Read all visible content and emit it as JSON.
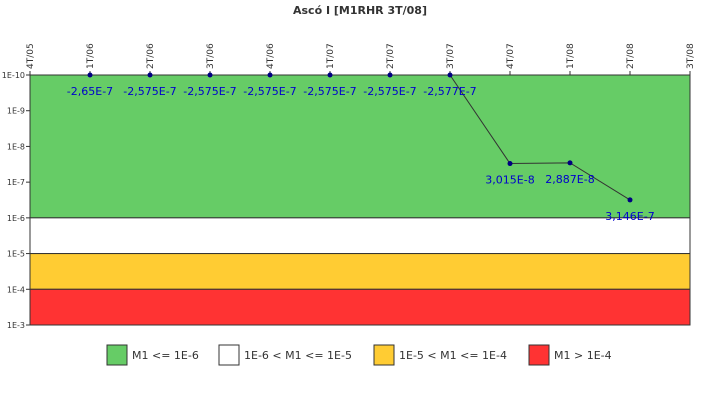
{
  "chart_data": {
    "type": "line",
    "title": "Ascó I [M1RHR 3T/08]",
    "categories": [
      "4T/05",
      "1T/06",
      "2T/06",
      "3T/06",
      "4T/06",
      "1T/07",
      "2T/07",
      "3T/07",
      "4T/07",
      "1T/08",
      "2T/08",
      "3T/08"
    ],
    "values": [
      null,
      -2.65e-07,
      -2.575e-07,
      -2.575e-07,
      -2.575e-07,
      -2.575e-07,
      -2.575e-07,
      -2.577e-07,
      3.015e-08,
      2.887e-08,
      3.146e-07,
      null
    ],
    "value_labels": [
      null,
      "-2,65E-7",
      "-2,575E-7",
      "-2,575E-7",
      "-2,575E-7",
      "-2,575E-7",
      "-2,575E-7",
      "-2,577E-7",
      "3,015E-8",
      "2,887E-8",
      "3,146E-7",
      null
    ],
    "color": "#333333",
    "marker_color": "#000080",
    "label_color": "#0000cc",
    "log_scale": true,
    "y_inverted": true,
    "ylim": [
      1e-10,
      0.001
    ],
    "yticks": [
      {
        "value": 1e-10,
        "label": "1E-10"
      },
      {
        "value": 1e-09,
        "label": "1E-9"
      },
      {
        "value": 1e-08,
        "label": "1E-8"
      },
      {
        "value": 1e-07,
        "label": "1E-7"
      },
      {
        "value": 1e-06,
        "label": "1E-6"
      },
      {
        "value": 1e-05,
        "label": "1E-5"
      },
      {
        "value": 0.0001,
        "label": "1E-4"
      },
      {
        "value": 0.001,
        "label": "1E-3"
      }
    ],
    "bands": [
      {
        "name": "M1 <= 1E-6",
        "color": "#66cc66",
        "from": 1e-10,
        "to": 1e-06
      },
      {
        "name": "1E-6 < M1 <= 1E-5",
        "color": "#ffffff",
        "from": 1e-06,
        "to": 1e-05
      },
      {
        "name": "1E-5 < M1 <= 1E-4",
        "color": "#ffcc33",
        "from": 1e-05,
        "to": 0.0001
      },
      {
        "name": "M1 > 1E-4",
        "color": "#ff3333",
        "from": 0.0001,
        "to": 0.001
      }
    ],
    "legend": "bottom"
  }
}
